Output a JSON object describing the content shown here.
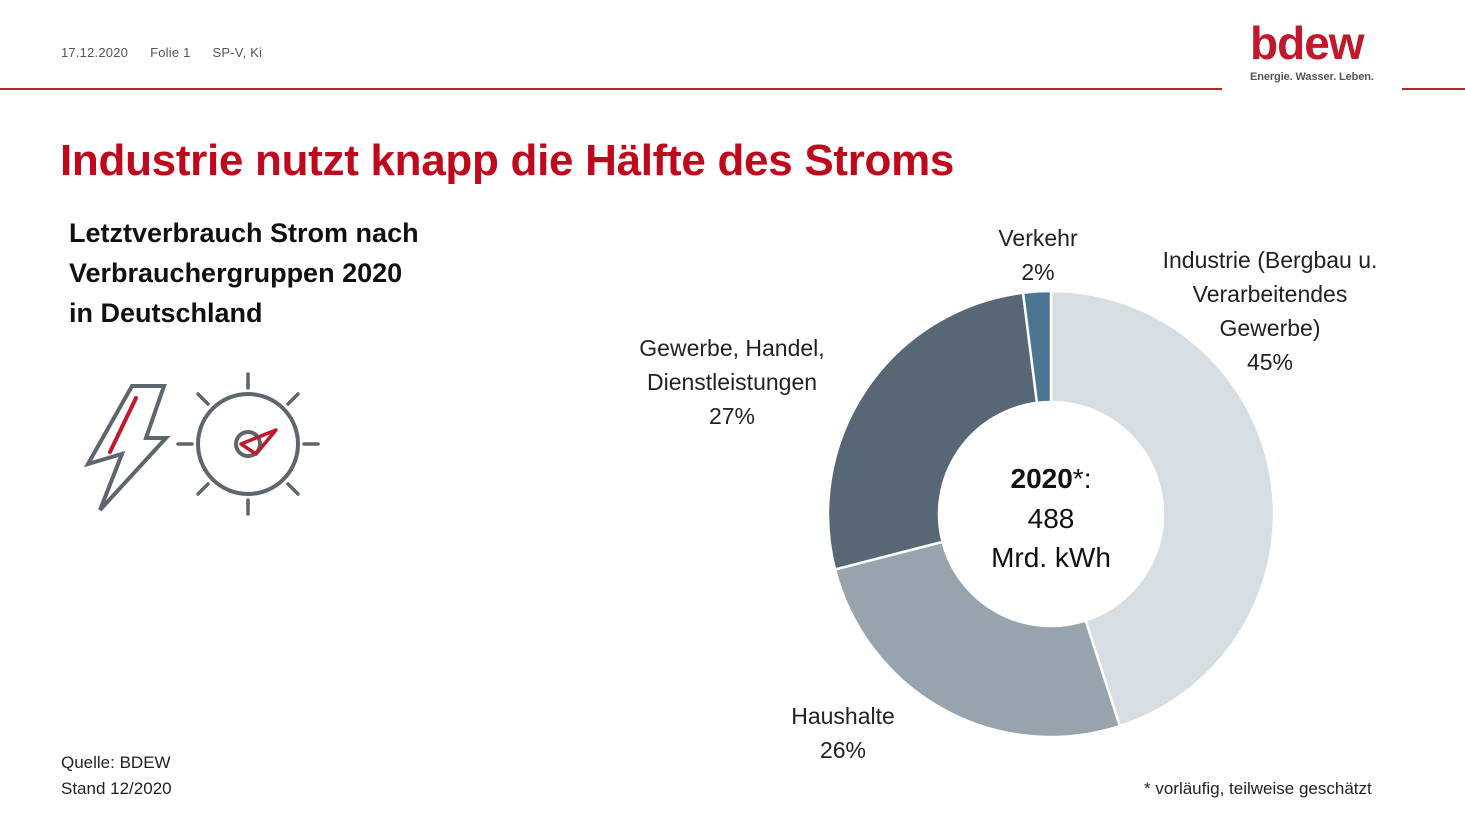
{
  "header": {
    "date": "17.12.2020",
    "slide": "Folie 1",
    "author": "SP-V, Ki"
  },
  "logo": {
    "word": "bdew",
    "tagline": "Energie. Wasser. Leben.",
    "color": "#c0182d"
  },
  "title": "Industrie nutzt knapp die Hälfte des Stroms",
  "subtitle_lines": [
    "Letztverbrauch Strom nach",
    "Verbrauchergruppen 2020",
    "in Deutschland"
  ],
  "icons": [
    "lightning-bolt-icon",
    "meter-dial-icon"
  ],
  "source_lines": [
    "Quelle: BDEW",
    "Stand 12/2020"
  ],
  "footnote": "* vorläufig, teilweise geschätzt",
  "chart_data": {
    "type": "pie",
    "donut": true,
    "center": {
      "year": "2020",
      "mark": "*:",
      "value": "488",
      "unit": "Mrd. kWh"
    },
    "slices": [
      {
        "label_lines": [
          "Industrie (Bergbau u.",
          "Verarbeitendes",
          "Gewerbe)"
        ],
        "percent_label": "45%",
        "value": 45,
        "color": "#d6dde3"
      },
      {
        "label_lines": [
          "Haushalte"
        ],
        "percent_label": "26%",
        "value": 26,
        "color": "#97a4ae"
      },
      {
        "label_lines": [
          "Gewerbe, Handel,",
          "Dienstleistungen"
        ],
        "percent_label": "27%",
        "value": 27,
        "color": "#586775"
      },
      {
        "label_lines": [
          "Verkehr"
        ],
        "percent_label": "2%",
        "value": 2,
        "color": "#4a7694"
      }
    ]
  }
}
